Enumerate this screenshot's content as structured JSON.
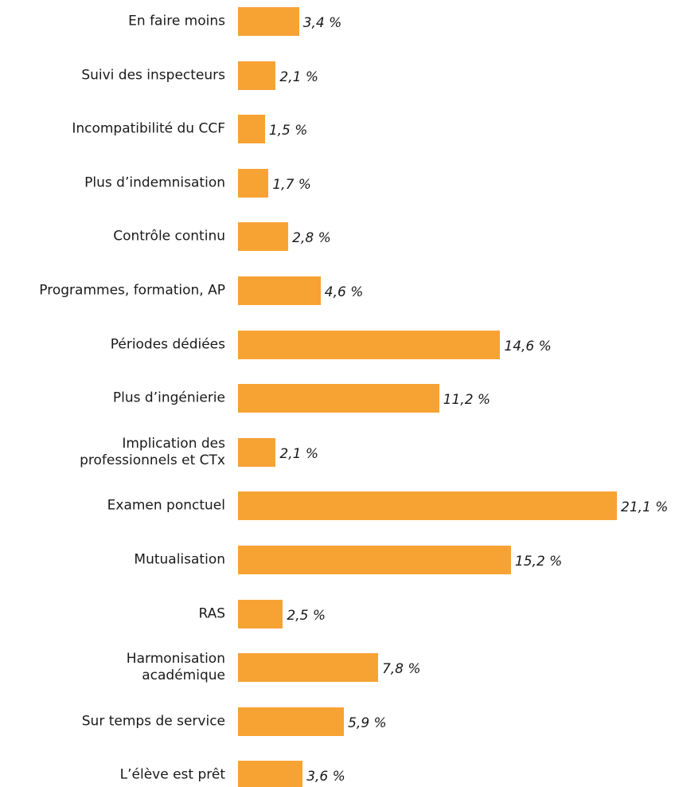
{
  "chart_data": {
    "type": "bar",
    "orientation": "horizontal",
    "color": "#f7a334",
    "categories": [
      "En faire moins",
      "Suivi des inspecteurs",
      "Incompatibilité du CCF",
      "Plus d’indemnisation",
      "Contrôle continu",
      "Programmes, formation, AP",
      "Périodes dédiées",
      "Plus d’ingénierie",
      "Implication des\nprofessionnels et CTx",
      "Examen ponctuel",
      "Mutualisation",
      "RAS",
      "Harmonisation\nacadémique",
      "Sur temps de service",
      "L’élève est prêt"
    ],
    "values": [
      3.4,
      2.1,
      1.5,
      1.7,
      2.8,
      4.6,
      14.6,
      11.2,
      2.1,
      21.1,
      15.2,
      2.5,
      7.8,
      5.9,
      3.6
    ],
    "value_labels": [
      "3,4 %",
      "2,1 %",
      "1,5 %",
      "1,7 %",
      "2,8 %",
      "4,6 %",
      "14,6 %",
      "11,2 %",
      "2,1 %",
      "21,1 %",
      "15,2 %",
      "2,5 %",
      "7,8 %",
      "5,9 %",
      "3,6 %"
    ]
  }
}
